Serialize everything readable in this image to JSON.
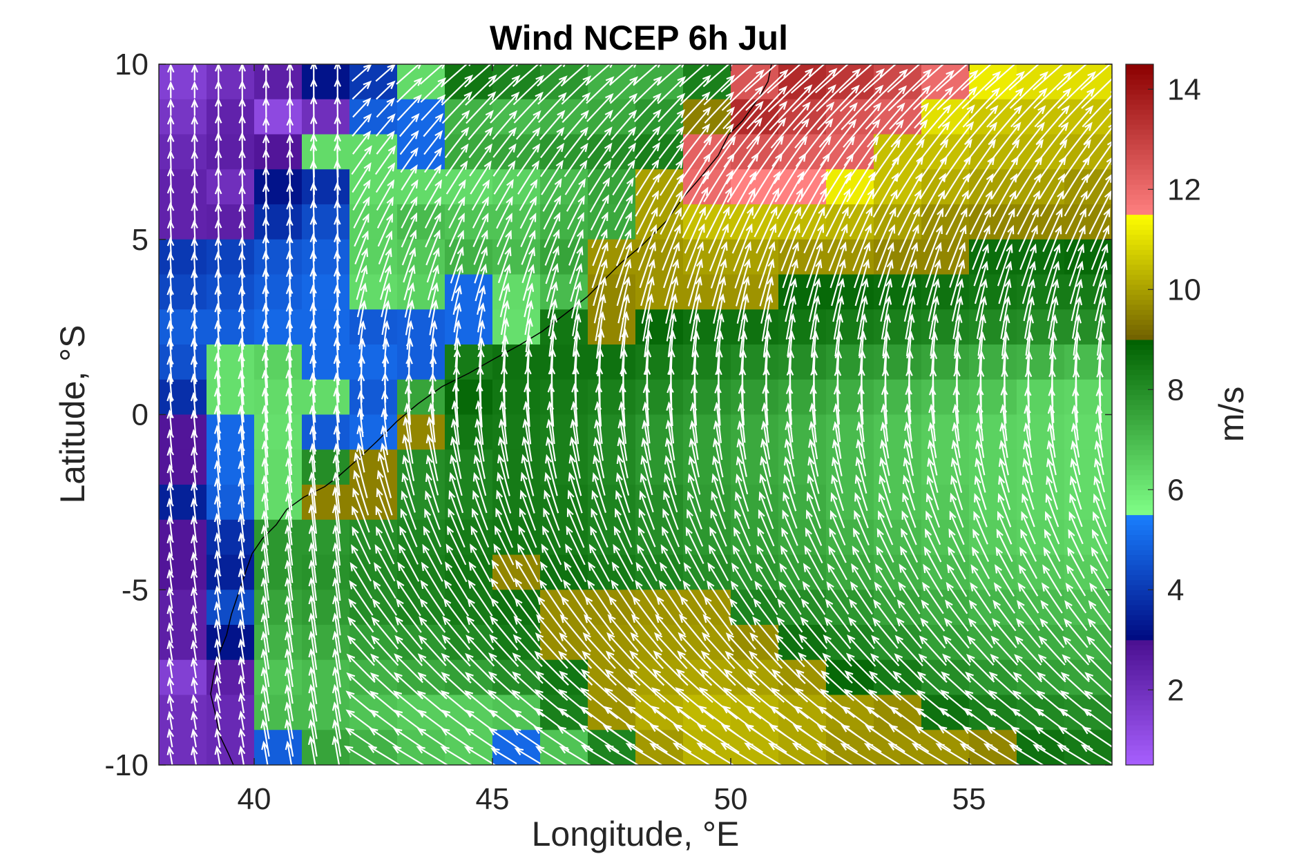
{
  "chart_data": {
    "type": "heatmap",
    "title": "Wind NCEP 6h Jul",
    "xlabel": "Longitude, °E",
    "ylabel": "Latitude, °S",
    "colorbar_label": "m/s",
    "xlim": [
      38,
      58
    ],
    "ylim": [
      -10,
      10
    ],
    "xticks": [
      "40",
      "45",
      "50",
      "55"
    ],
    "yticks": [
      "10",
      "5",
      "0",
      "-5",
      "-10"
    ],
    "colorbar_ticks": [
      "14",
      "12",
      "10",
      "8",
      "6",
      "4",
      "2"
    ],
    "clim": [
      0.5,
      14.5
    ],
    "colormap": [
      {
        "from": 0.5,
        "to": 3,
        "color_low": "#a860ff",
        "color_high": "#4a0f90"
      },
      {
        "from": 3,
        "to": 5.5,
        "color_low": "#000a80",
        "color_high": "#1a7fff"
      },
      {
        "from": 5.5,
        "to": 9,
        "color_low": "#80ff88",
        "color_high": "#006000"
      },
      {
        "from": 9,
        "to": 11.5,
        "color_low": "#706000",
        "color_high": "#ffff00"
      },
      {
        "from": 11.5,
        "to": 14.5,
        "color_low": "#ff8080",
        "color_high": "#8b0000"
      }
    ],
    "grid_lon": [
      38,
      39,
      40,
      41,
      42,
      43,
      44,
      45,
      46,
      47,
      48,
      49,
      50,
      51,
      52,
      53,
      54,
      55,
      56,
      57
    ],
    "grid_lat": [
      9,
      8,
      7,
      6,
      5,
      4,
      3,
      2,
      1,
      0,
      -1,
      -2,
      -3,
      -4,
      -5,
      -6,
      -7,
      -8,
      -9,
      -10
    ],
    "speed_grid": [
      [
        1.5,
        2.0,
        2.5,
        3.2,
        4.0,
        6.3,
        8.5,
        8.2,
        7.8,
        7.2,
        7.3,
        8.3,
        12.5,
        13.5,
        13.2,
        12.8,
        12.0,
        11.2,
        11.0,
        11.0
      ],
      [
        1.8,
        2.4,
        1.2,
        2.0,
        4.8,
        5.0,
        7.2,
        7.0,
        7.2,
        7.4,
        7.8,
        9.5,
        13.5,
        13.0,
        12.5,
        12.3,
        11.0,
        10.6,
        10.5,
        10.5
      ],
      [
        2.2,
        2.5,
        2.8,
        6.3,
        6.3,
        5.0,
        7.4,
        7.5,
        7.8,
        8.0,
        8.3,
        12.2,
        12.5,
        12.3,
        12.2,
        10.5,
        10.5,
        10.3,
        10.3,
        10.2
      ],
      [
        2.4,
        2.0,
        3.2,
        3.8,
        6.3,
        6.3,
        6.3,
        6.5,
        7.0,
        7.5,
        10.0,
        12.0,
        11.5,
        11.5,
        11.2,
        10.5,
        10.2,
        10.0,
        10.0,
        9.8
      ],
      [
        2.4,
        2.5,
        3.8,
        4.4,
        6.5,
        7.0,
        6.8,
        6.8,
        7.2,
        7.4,
        10.0,
        10.5,
        10.5,
        10.4,
        10.3,
        10.0,
        9.7,
        9.6,
        9.6,
        9.6
      ],
      [
        4.0,
        4.2,
        4.6,
        4.8,
        6.5,
        6.7,
        7.2,
        7.0,
        7.5,
        9.8,
        9.8,
        10.0,
        10.0,
        9.8,
        9.8,
        9.6,
        9.6,
        8.7,
        8.7,
        8.8
      ],
      [
        4.3,
        4.5,
        4.8,
        5.0,
        6.3,
        6.5,
        5.0,
        6.3,
        7.0,
        9.6,
        9.8,
        9.8,
        9.8,
        8.8,
        8.8,
        8.7,
        8.6,
        8.5,
        8.4,
        8.4
      ],
      [
        4.8,
        4.8,
        5.0,
        5.0,
        4.7,
        4.8,
        5.0,
        6.2,
        8.5,
        9.6,
        8.8,
        8.6,
        8.6,
        8.5,
        8.4,
        8.3,
        8.2,
        8.1,
        8.0,
        8.0
      ],
      [
        4.5,
        6.2,
        6.5,
        5.0,
        5.0,
        4.8,
        8.4,
        8.6,
        8.6,
        8.6,
        8.4,
        8.3,
        8.1,
        8.0,
        7.8,
        7.7,
        7.5,
        7.3,
        7.2,
        7.0
      ],
      [
        3.8,
        6.2,
        6.3,
        6.3,
        4.7,
        7.5,
        8.8,
        8.5,
        8.4,
        8.3,
        8.1,
        7.9,
        7.7,
        7.5,
        7.3,
        7.1,
        6.9,
        6.8,
        6.5,
        6.4
      ],
      [
        2.8,
        5.0,
        6.2,
        4.7,
        5.0,
        9.6,
        8.5,
        8.4,
        8.3,
        8.1,
        7.8,
        7.6,
        7.4,
        7.2,
        7.0,
        6.8,
        6.6,
        6.5,
        6.4,
        6.3
      ],
      [
        2.8,
        5.0,
        6.3,
        8.0,
        9.5,
        8.0,
        8.2,
        8.4,
        8.3,
        8.1,
        7.8,
        7.6,
        7.4,
        7.2,
        7.0,
        6.8,
        6.6,
        6.5,
        6.4,
        6.3
      ],
      [
        3.5,
        4.8,
        6.3,
        9.5,
        9.5,
        8.0,
        8.2,
        8.4,
        8.4,
        8.2,
        8.0,
        7.7,
        7.5,
        7.3,
        7.0,
        6.8,
        6.7,
        6.5,
        6.4,
        6.3
      ],
      [
        2.8,
        3.8,
        7.8,
        7.8,
        8.0,
        8.2,
        8.4,
        8.5,
        8.4,
        8.2,
        8.0,
        7.8,
        7.6,
        7.4,
        7.2,
        7.0,
        6.8,
        6.6,
        6.5,
        6.4
      ],
      [
        2.8,
        3.5,
        7.8,
        7.9,
        8.1,
        8.3,
        8.5,
        9.6,
        8.6,
        8.4,
        8.2,
        8.0,
        7.8,
        7.6,
        7.4,
        7.2,
        7.0,
        6.8,
        6.7,
        6.6
      ],
      [
        2.5,
        4.4,
        7.5,
        7.7,
        8.0,
        8.2,
        8.4,
        8.6,
        9.7,
        9.7,
        9.8,
        9.8,
        8.2,
        8.0,
        7.8,
        7.5,
        7.3,
        7.1,
        7.0,
        6.9
      ],
      [
        2.5,
        3.2,
        7.2,
        7.4,
        7.6,
        7.8,
        8.1,
        8.4,
        9.7,
        9.8,
        9.9,
        9.9,
        9.7,
        8.6,
        8.2,
        7.9,
        7.6,
        7.4,
        7.3,
        7.2
      ],
      [
        1.5,
        2.5,
        6.8,
        7.0,
        7.2,
        7.4,
        7.6,
        8.0,
        8.5,
        9.8,
        10.0,
        10.1,
        10.0,
        9.8,
        8.8,
        8.4,
        8.0,
        7.8,
        7.6,
        7.5
      ],
      [
        2.0,
        2.2,
        7.0,
        7.0,
        6.8,
        6.6,
        6.6,
        6.8,
        8.3,
        9.8,
        10.2,
        10.4,
        10.3,
        10.1,
        9.9,
        9.7,
        8.6,
        8.3,
        8.1,
        8.0
      ],
      [
        2.0,
        2.2,
        4.8,
        7.5,
        7.2,
        6.8,
        6.6,
        5.0,
        6.8,
        8.2,
        9.9,
        10.3,
        10.3,
        10.1,
        9.8,
        9.8,
        9.8,
        9.6,
        8.6,
        8.4
      ]
    ],
    "vectors": "white arrows on 0.5° grid, wind direction and speed (cyclonic turning from SE-trades in south to SW-monsoon in north)",
    "coastline": "black line along East African coast"
  }
}
